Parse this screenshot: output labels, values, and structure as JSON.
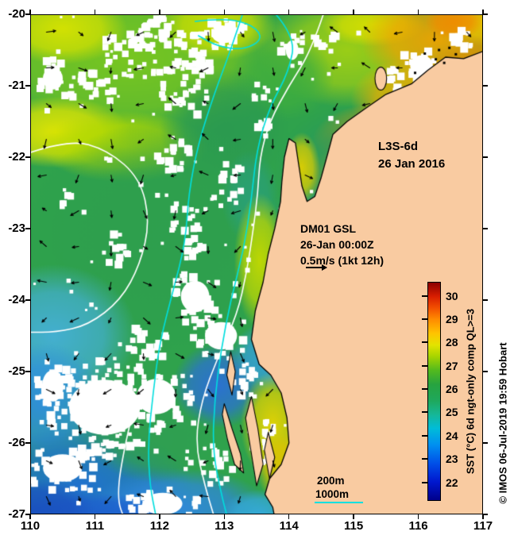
{
  "annotations": {
    "product": "L3S-6d",
    "date": "26 Jan 2016",
    "mooring": {
      "line1": "DM01 GSL",
      "line2": "26-Jan 00:00Z",
      "line3": "0.5m/s (1kt 12h)",
      "arrow_icon": "right-arrow"
    }
  },
  "axes": {
    "x_tick_labels": [
      "110",
      "111",
      "112",
      "113",
      "114",
      "115",
      "116",
      "117"
    ],
    "y_tick_labels": [
      "-20",
      "-21",
      "-22",
      "-23",
      "-24",
      "-25",
      "-26",
      "-27"
    ],
    "x_range": [
      110,
      117
    ],
    "y_range": [
      -27,
      -20
    ]
  },
  "colorbar": {
    "label": "SST (°C) 6d ngt-only comp QL>=3",
    "tick_values": [
      30,
      29,
      28,
      27,
      26,
      25,
      24,
      23,
      22
    ],
    "value_range": [
      21.2,
      30.6
    ],
    "stops": [
      {
        "v": 21.2,
        "c": "#00008b"
      },
      {
        "v": 22.0,
        "c": "#0018cf"
      },
      {
        "v": 22.8,
        "c": "#0050e8"
      },
      {
        "v": 23.6,
        "c": "#0090f0"
      },
      {
        "v": 24.3,
        "c": "#00bcd8"
      },
      {
        "v": 24.9,
        "c": "#16b796"
      },
      {
        "v": 25.5,
        "c": "#1fa85c"
      },
      {
        "v": 26.2,
        "c": "#27a33f"
      },
      {
        "v": 26.8,
        "c": "#52b91e"
      },
      {
        "v": 27.4,
        "c": "#a6d400"
      },
      {
        "v": 27.9,
        "c": "#e3e300"
      },
      {
        "v": 28.4,
        "c": "#ffc400"
      },
      {
        "v": 29.0,
        "c": "#ff8c00"
      },
      {
        "v": 29.5,
        "c": "#f25000"
      },
      {
        "v": 30.0,
        "c": "#d81e00"
      },
      {
        "v": 30.6,
        "c": "#8b0000"
      }
    ]
  },
  "depth_legend": {
    "items": [
      {
        "label": "200m",
        "line_color": "#ffffff",
        "show_line": false
      },
      {
        "label": "1000m",
        "line_color": "#00e0e0",
        "show_line": true
      }
    ]
  },
  "watermark": "© IMOS 06-Jul-2019 19:59 Hobart",
  "chart_data": {
    "type": "heatmap",
    "title": "L3S-6d 26 Jan 2016",
    "xlabel": "",
    "ylabel": "",
    "x_range": [
      110,
      117
    ],
    "y_range": [
      -27,
      -20
    ],
    "colorbar_label": "SST (°C) 6d ngt-only comp QL>=3",
    "colorbar_ticks": [
      22,
      23,
      24,
      25,
      26,
      27,
      28,
      29,
      30
    ],
    "vector_scale": "0.5m/s (1kt 12h)"
  },
  "map": {
    "land_color": "#f9cba1",
    "coast_color": "#000000",
    "ocean_base_color": "#2fa24c",
    "contour_200m_color": "#ffffff",
    "contour_1000m_color": "#00dede",
    "land_polygon": [
      [
        117.2,
        -20.45
      ],
      [
        116.7,
        -20.62
      ],
      [
        116.42,
        -20.6
      ],
      [
        116.15,
        -20.78
      ],
      [
        115.9,
        -20.97
      ],
      [
        115.5,
        -21.12
      ],
      [
        115.18,
        -21.32
      ],
      [
        114.9,
        -21.5
      ],
      [
        114.68,
        -21.68
      ],
      [
        114.6,
        -21.95
      ],
      [
        114.5,
        -22.28
      ],
      [
        114.4,
        -22.55
      ],
      [
        114.28,
        -22.62
      ],
      [
        114.2,
        -22.4
      ],
      [
        114.15,
        -22.1
      ],
      [
        114.1,
        -21.8
      ],
      [
        114.0,
        -21.74
      ],
      [
        113.93,
        -22.0
      ],
      [
        113.89,
        -22.35
      ],
      [
        113.87,
        -22.62
      ],
      [
        113.78,
        -23.0
      ],
      [
        113.68,
        -23.35
      ],
      [
        113.6,
        -23.75
      ],
      [
        113.48,
        -24.15
      ],
      [
        113.42,
        -24.55
      ],
      [
        113.54,
        -24.9
      ],
      [
        113.72,
        -25.05
      ],
      [
        113.88,
        -25.3
      ],
      [
        113.97,
        -25.65
      ],
      [
        114.0,
        -26.0
      ],
      [
        113.88,
        -26.3
      ],
      [
        113.7,
        -26.5
      ],
      [
        113.63,
        -26.72
      ],
      [
        113.75,
        -26.9
      ],
      [
        113.8,
        -27.15
      ],
      [
        117.2,
        -27.15
      ]
    ],
    "islands": [
      [
        [
          113.0,
          -25.45
        ],
        [
          113.12,
          -25.8
        ],
        [
          113.25,
          -26.15
        ],
        [
          113.3,
          -26.42
        ],
        [
          113.16,
          -26.3
        ],
        [
          113.05,
          -25.95
        ],
        [
          112.97,
          -25.6
        ]
      ],
      [
        [
          113.1,
          -24.72
        ],
        [
          113.17,
          -25.0
        ],
        [
          113.12,
          -25.33
        ],
        [
          113.04,
          -25.05
        ]
      ],
      [
        [
          113.42,
          -25.35
        ],
        [
          113.52,
          -25.8
        ],
        [
          113.6,
          -26.3
        ],
        [
          113.5,
          -26.6
        ],
        [
          113.42,
          -26.15
        ],
        [
          113.33,
          -25.65
        ]
      ],
      [
        [
          113.68,
          -25.85
        ],
        [
          113.78,
          -26.2
        ],
        [
          113.7,
          -26.5
        ],
        [
          113.62,
          -26.1
        ]
      ]
    ],
    "barrow_island": {
      "lon": 115.42,
      "lat": -20.9,
      "rx": 0.09,
      "ry": 0.16
    },
    "islets": [
      [
        116.32,
        -20.5
      ],
      [
        116.48,
        -20.47
      ],
      [
        116.27,
        -20.63
      ],
      [
        116.58,
        -20.56
      ],
      [
        116.4,
        -20.68
      ],
      [
        115.95,
        -20.82
      ],
      [
        116.1,
        -20.55
      ]
    ],
    "contours_200m": [
      [
        [
          114.55,
          -19.95
        ],
        [
          114.35,
          -20.5
        ],
        [
          114.0,
          -21.0
        ],
        [
          113.7,
          -21.5
        ],
        [
          113.55,
          -22.0
        ],
        [
          113.52,
          -22.5
        ],
        [
          113.45,
          -23.0
        ],
        [
          113.35,
          -23.6
        ],
        [
          113.2,
          -24.2
        ],
        [
          112.9,
          -24.8
        ],
        [
          112.65,
          -25.4
        ],
        [
          112.55,
          -26.0
        ],
        [
          112.7,
          -26.6
        ],
        [
          112.85,
          -27.05
        ]
      ],
      [
        [
          109.95,
          -21.95
        ],
        [
          110.6,
          -21.75
        ],
        [
          111.2,
          -21.9
        ],
        [
          111.7,
          -22.3
        ],
        [
          111.85,
          -22.9
        ],
        [
          111.7,
          -23.5
        ],
        [
          111.4,
          -24.0
        ],
        [
          110.9,
          -24.35
        ],
        [
          110.4,
          -24.45
        ],
        [
          109.95,
          -24.45
        ]
      ],
      [
        [
          111.55,
          -25.7
        ],
        [
          111.4,
          -26.3
        ],
        [
          111.35,
          -26.8
        ],
        [
          111.45,
          -27.05
        ]
      ]
    ],
    "contours_1000m": [
      [
        [
          113.3,
          -19.95
        ],
        [
          113.1,
          -20.5
        ],
        [
          112.85,
          -21.1
        ],
        [
          112.6,
          -21.8
        ],
        [
          112.45,
          -22.5
        ],
        [
          112.4,
          -23.2
        ],
        [
          112.2,
          -23.9
        ],
        [
          112.0,
          -24.6
        ],
        [
          111.9,
          -25.3
        ],
        [
          111.82,
          -26.0
        ],
        [
          111.85,
          -26.6
        ],
        [
          111.95,
          -27.05
        ]
      ],
      [
        [
          113.75,
          -19.95
        ],
        [
          114.1,
          -20.3
        ],
        [
          114.0,
          -20.8
        ],
        [
          113.7,
          -21.3
        ],
        [
          113.5,
          -21.9
        ],
        [
          113.42,
          -22.6
        ],
        [
          113.3,
          -23.3
        ],
        [
          113.1,
          -24.0
        ],
        [
          112.95,
          -24.7
        ],
        [
          112.85,
          -25.4
        ],
        [
          112.82,
          -26.1
        ],
        [
          112.95,
          -26.7
        ],
        [
          113.05,
          -27.05
        ]
      ],
      [
        [
          112.55,
          -20.1
        ],
        [
          113.0,
          -20.05
        ],
        [
          113.45,
          -20.15
        ],
        [
          113.6,
          -20.35
        ],
        [
          113.3,
          -20.5
        ],
        [
          112.9,
          -20.45
        ],
        [
          112.6,
          -20.3
        ]
      ]
    ],
    "sst_regions": [
      {
        "lon": 111.5,
        "lat": -20.6,
        "rx": 2.6,
        "ry": 1.2,
        "color": "#7cc81e"
      },
      {
        "lon": 110.5,
        "lat": -20.2,
        "rx": 1.0,
        "ry": 0.5,
        "color": "#d8e300"
      },
      {
        "lon": 112.9,
        "lat": -20.15,
        "rx": 0.9,
        "ry": 0.5,
        "color": "#cfe000"
      },
      {
        "lon": 114.9,
        "lat": -20.5,
        "rx": 1.4,
        "ry": 0.8,
        "color": "#a0d014"
      },
      {
        "lon": 115.3,
        "lat": -20.15,
        "rx": 0.8,
        "ry": 0.3,
        "color": "#d8e000"
      },
      {
        "lon": 113.9,
        "lat": -20.9,
        "rx": 0.8,
        "ry": 0.6,
        "color": "#3fae3e"
      },
      {
        "lon": 116.3,
        "lat": -20.35,
        "rx": 1.2,
        "ry": 0.7,
        "color": "#f2a400"
      },
      {
        "lon": 117.0,
        "lat": -20.1,
        "rx": 0.5,
        "ry": 0.35,
        "color": "#e8c000"
      },
      {
        "lon": 116.55,
        "lat": -20.1,
        "rx": 0.45,
        "ry": 0.25,
        "color": "#f08c00"
      },
      {
        "lon": 116.9,
        "lat": -21.15,
        "rx": 0.9,
        "ry": 0.85,
        "color": "#e08800"
      },
      {
        "lon": 115.95,
        "lat": -21.2,
        "rx": 1.0,
        "ry": 0.6,
        "color": "#f0b000"
      },
      {
        "lon": 115.35,
        "lat": -21.8,
        "rx": 1.0,
        "ry": 0.55,
        "color": "#ee9c00"
      },
      {
        "lon": 114.75,
        "lat": -22.35,
        "rx": 0.55,
        "ry": 0.45,
        "color": "#f0ae00"
      },
      {
        "lon": 110.4,
        "lat": -21.65,
        "rx": 1.15,
        "ry": 0.5,
        "color": "#e6e800"
      },
      {
        "lon": 111.45,
        "lat": -21.85,
        "rx": 1.3,
        "ry": 0.5,
        "color": "#b4da00"
      },
      {
        "lon": 113.0,
        "lat": -21.6,
        "rx": 1.0,
        "ry": 0.85,
        "color": "#2b9a50"
      },
      {
        "lon": 115.05,
        "lat": -22.25,
        "rx": 1.3,
        "ry": 1.0,
        "color": "#27995e"
      },
      {
        "lon": 114.35,
        "lat": -23.0,
        "rx": 0.75,
        "ry": 0.65,
        "color": "#2a9e71"
      },
      {
        "lon": 112.0,
        "lat": -23.1,
        "rx": 2.1,
        "ry": 1.6,
        "color": "#2e9f4e"
      },
      {
        "lon": 113.4,
        "lat": -22.55,
        "rx": 0.45,
        "ry": 0.65,
        "color": "#2aa076"
      },
      {
        "lon": 110.35,
        "lat": -24.5,
        "rx": 1.3,
        "ry": 1.0,
        "color": "#45b0d8"
      },
      {
        "lon": 110.2,
        "lat": -25.45,
        "rx": 1.0,
        "ry": 0.85,
        "color": "#2f8fe0"
      },
      {
        "lon": 110.8,
        "lat": -26.6,
        "rx": 1.7,
        "ry": 0.85,
        "color": "#1f6fd6"
      },
      {
        "lon": 112.3,
        "lat": -26.9,
        "rx": 1.4,
        "ry": 0.55,
        "color": "#2f87e0"
      },
      {
        "lon": 111.0,
        "lat": -27.0,
        "rx": 1.2,
        "ry": 0.3,
        "color": "#1d5ecf"
      },
      {
        "lon": 110.1,
        "lat": -26.95,
        "rx": 0.9,
        "ry": 0.45,
        "color": "#1a50c0"
      },
      {
        "lon": 112.9,
        "lat": -25.2,
        "rx": 0.7,
        "ry": 0.6,
        "color": "#2b6fd8"
      },
      {
        "lon": 113.7,
        "lat": -24.8,
        "rx": 0.6,
        "ry": 0.5,
        "color": "#35a0e0"
      },
      {
        "lon": 114.6,
        "lat": -24.0,
        "rx": 0.7,
        "ry": 0.9,
        "color": "#2aa05a"
      },
      {
        "lon": 114.2,
        "lat": -22.15,
        "rx": 0.28,
        "ry": 0.5,
        "color": "#e0cf00"
      },
      {
        "lon": 113.55,
        "lat": -23.45,
        "rx": 0.4,
        "ry": 0.95,
        "color": "#c4da00"
      },
      {
        "lon": 113.75,
        "lat": -25.75,
        "rx": 0.5,
        "ry": 0.75,
        "color": "#e8d400"
      },
      {
        "lon": 113.9,
        "lat": -26.35,
        "rx": 0.4,
        "ry": 0.5,
        "color": "#e0c400"
      },
      {
        "lon": 111.9,
        "lat": -25.95,
        "rx": 1.0,
        "ry": 0.6,
        "color": "#2f9f52"
      },
      {
        "lon": 113.55,
        "lat": -27.0,
        "rx": 0.6,
        "ry": 0.35,
        "color": "#35aade"
      }
    ],
    "clouds": [
      {
        "lon": 112.35,
        "lat": -20.85,
        "rx": 0.45,
        "ry": 0.65,
        "n": 80,
        "core": false
      },
      {
        "lon": 112.05,
        "lat": -20.3,
        "rx": 0.4,
        "ry": 0.28,
        "n": 35,
        "core": false
      },
      {
        "lon": 113.0,
        "lat": -20.28,
        "rx": 0.35,
        "ry": 0.22,
        "n": 30,
        "core": true
      },
      {
        "lon": 110.35,
        "lat": -20.9,
        "rx": 0.28,
        "ry": 0.28,
        "n": 26,
        "core": true
      },
      {
        "lon": 110.95,
        "lat": -21.1,
        "rx": 0.45,
        "ry": 0.3,
        "n": 36,
        "core": false
      },
      {
        "lon": 111.6,
        "lat": -20.55,
        "rx": 0.5,
        "ry": 0.35,
        "n": 36,
        "core": false
      },
      {
        "lon": 114.05,
        "lat": -20.5,
        "rx": 0.18,
        "ry": 0.25,
        "n": 16,
        "core": true
      },
      {
        "lon": 114.55,
        "lat": -20.33,
        "rx": 0.18,
        "ry": 0.14,
        "n": 10,
        "core": false
      },
      {
        "lon": 116.05,
        "lat": -20.72,
        "rx": 0.32,
        "ry": 0.27,
        "n": 26,
        "core": true
      },
      {
        "lon": 115.6,
        "lat": -20.95,
        "rx": 0.25,
        "ry": 0.18,
        "n": 16,
        "core": false
      },
      {
        "lon": 116.5,
        "lat": -21.2,
        "rx": 0.22,
        "ry": 0.3,
        "n": 22,
        "core": false
      },
      {
        "lon": 116.7,
        "lat": -20.35,
        "rx": 0.18,
        "ry": 0.18,
        "n": 12,
        "core": false
      },
      {
        "lon": 112.2,
        "lat": -21.95,
        "rx": 0.28,
        "ry": 0.28,
        "n": 22,
        "core": false
      },
      {
        "lon": 113.55,
        "lat": -21.35,
        "rx": 0.22,
        "ry": 0.38,
        "n": 24,
        "core": false
      },
      {
        "lon": 113.1,
        "lat": -22.3,
        "rx": 0.2,
        "ry": 0.3,
        "n": 16,
        "core": false
      },
      {
        "lon": 112.45,
        "lat": -22.95,
        "rx": 0.3,
        "ry": 0.5,
        "n": 34,
        "core": false
      },
      {
        "lon": 112.55,
        "lat": -23.95,
        "rx": 0.4,
        "ry": 0.4,
        "n": 40,
        "core": true
      },
      {
        "lon": 112.95,
        "lat": -24.5,
        "rx": 0.45,
        "ry": 0.35,
        "n": 40,
        "core": true
      },
      {
        "lon": 111.85,
        "lat": -24.6,
        "rx": 0.38,
        "ry": 0.28,
        "n": 28,
        "core": false
      },
      {
        "lon": 111.15,
        "lat": -25.5,
        "rx": 1.0,
        "ry": 0.7,
        "n": 130,
        "core": true
      },
      {
        "lon": 111.95,
        "lat": -25.35,
        "rx": 0.55,
        "ry": 0.45,
        "n": 50,
        "core": true
      },
      {
        "lon": 110.35,
        "lat": -25.2,
        "rx": 0.3,
        "ry": 0.4,
        "n": 30,
        "core": true
      },
      {
        "lon": 110.5,
        "lat": -26.35,
        "rx": 0.55,
        "ry": 0.35,
        "n": 42,
        "core": true
      },
      {
        "lon": 112.05,
        "lat": -26.85,
        "rx": 0.55,
        "ry": 0.28,
        "n": 38,
        "core": true
      },
      {
        "lon": 112.75,
        "lat": -26.35,
        "rx": 0.38,
        "ry": 0.32,
        "n": 30,
        "core": false
      },
      {
        "lon": 113.35,
        "lat": -25.15,
        "rx": 0.26,
        "ry": 0.26,
        "n": 20,
        "core": false
      },
      {
        "lon": 113.6,
        "lat": -25.95,
        "rx": 0.22,
        "ry": 0.33,
        "n": 22,
        "core": false
      },
      {
        "lon": 114.4,
        "lat": -24.3,
        "rx": 0.28,
        "ry": 0.33,
        "n": 26,
        "core": true
      },
      {
        "lon": 114.15,
        "lat": -23.6,
        "rx": 0.18,
        "ry": 0.28,
        "n": 16,
        "core": false
      },
      {
        "lon": 113.95,
        "lat": -26.95,
        "rx": 0.3,
        "ry": 0.14,
        "n": 12,
        "core": false
      },
      {
        "lon": 111.3,
        "lat": -23.3,
        "rx": 0.22,
        "ry": 0.22,
        "n": 14,
        "core": false
      },
      {
        "lon": 110.55,
        "lat": -22.6,
        "rx": 0.18,
        "ry": 0.18,
        "n": 10,
        "core": false
      }
    ],
    "vectors": {
      "lon_start": 110.25,
      "lat_start": -20.25,
      "spacing": 0.5,
      "cols": 15,
      "rows": 14,
      "color": "#000000"
    }
  }
}
